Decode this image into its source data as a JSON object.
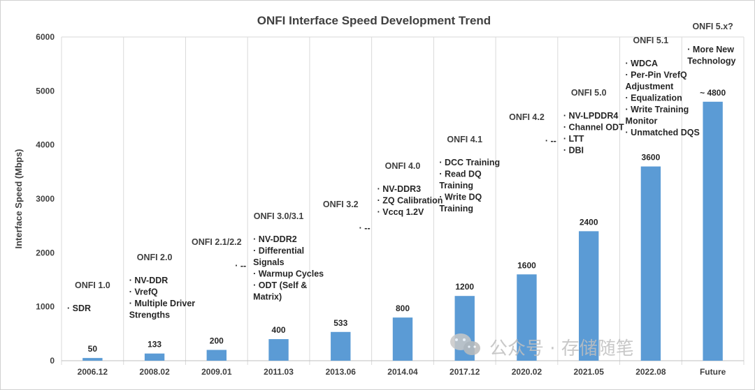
{
  "chart_data": {
    "type": "bar",
    "title": "ONFI Interface Speed Development Trend",
    "ylabel": "Interface Speed (Mbps)",
    "xlabel": "",
    "ylim": [
      0,
      6000
    ],
    "yticks": [
      "0",
      "1000",
      "2000",
      "3000",
      "4000",
      "5000",
      "6000"
    ],
    "grid": "vertical category dividers",
    "bar_color": "#5b9bd5",
    "categories": [
      "2006.12",
      "2008.02",
      "2009.01",
      "2011.03",
      "2013.06",
      "2014.04",
      "2017.12",
      "2020.02",
      "2021.05",
      "2022.08",
      "Future"
    ],
    "values": [
      50,
      133,
      200,
      400,
      533,
      800,
      1200,
      1600,
      2400,
      3600,
      4800
    ],
    "value_labels": [
      "50",
      "133",
      "200",
      "400",
      "533",
      "800",
      "1200",
      "1600",
      "2400",
      "3600",
      "~ 4800"
    ],
    "annotations": [
      {
        "title": "ONFI 1.0",
        "items": [
          "SDR"
        ]
      },
      {
        "title": "ONFI 2.0",
        "items": [
          "NV-DDR",
          "VrefQ",
          "Multiple Driver Strengths"
        ]
      },
      {
        "title": "ONFI 2.1/2.2",
        "items": [
          "--"
        ]
      },
      {
        "title": "ONFI 3.0/3.1",
        "items": [
          "NV-DDR2",
          "Differential Signals",
          "Warmup Cycles",
          "ODT (Self & Matrix)"
        ]
      },
      {
        "title": "ONFI 3.2",
        "items": [
          "--"
        ]
      },
      {
        "title": "ONFI 4.0",
        "items": [
          "NV-DDR3",
          "ZQ Calibration",
          "Vccq 1.2V"
        ]
      },
      {
        "title": "ONFI 4.1",
        "items": [
          "DCC Training",
          "Read DQ Training",
          "Write DQ Training"
        ]
      },
      {
        "title": "ONFI 4.2",
        "items": [
          "--"
        ]
      },
      {
        "title": "ONFI 5.0",
        "items": [
          "NV-LPDDR4",
          "Channel ODT",
          "LTT",
          "DBI"
        ]
      },
      {
        "title": "ONFI 5.1",
        "items": [
          "WDCA",
          "Per-Pin VrefQ Adjustment",
          "Equalization",
          "Write Training Monitor",
          "Unmatched DQS"
        ]
      },
      {
        "title": "ONFI 5.x?",
        "items": [
          "More New Technology"
        ]
      }
    ]
  },
  "watermark": "公众号 · 存储随笔",
  "watermark_icon": "wechat-icon"
}
